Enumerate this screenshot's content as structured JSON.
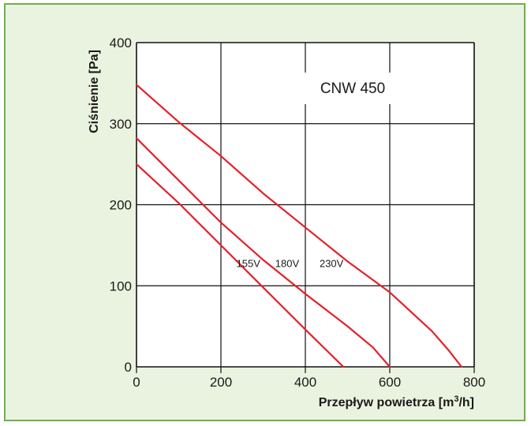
{
  "colors": {
    "panel_background": "#eaf3df",
    "panel_border": "#6db04a",
    "curve": "#e5202a",
    "grid": "#111111"
  },
  "chart_data": {
    "type": "line",
    "title": "",
    "annotation": "CNW 450",
    "xlabel_text": "Przepływ  powietrza [m",
    "xlabel_superscript": "3",
    "xlabel_suffix": "/h]",
    "ylabel": "Ciśnienie [Pa]",
    "xlim": [
      0,
      800
    ],
    "ylim": [
      0,
      400
    ],
    "x_ticks": [
      0,
      200,
      400,
      600,
      800
    ],
    "y_ticks": [
      0,
      100,
      200,
      300,
      400
    ],
    "grid": true,
    "legend": "none",
    "series": [
      {
        "name": "155V",
        "x": [
          0,
          100,
          200,
          300,
          400,
          490
        ],
        "y": [
          250,
          202,
          150,
          98,
          46,
          0
        ]
      },
      {
        "name": "180V",
        "x": [
          0,
          100,
          200,
          300,
          400,
          500,
          560,
          600
        ],
        "y": [
          282,
          230,
          178,
          132,
          90,
          50,
          24,
          0
        ]
      },
      {
        "name": "230V",
        "x": [
          0,
          100,
          200,
          300,
          400,
          500,
          600,
          700,
          740,
          770
        ],
        "y": [
          348,
          302,
          260,
          214,
          172,
          130,
          92,
          44,
          20,
          0
        ]
      }
    ]
  }
}
